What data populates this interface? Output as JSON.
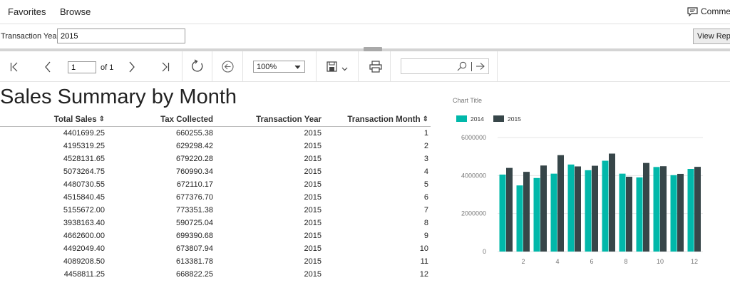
{
  "nav": {
    "favorites": "Favorites",
    "browse": "Browse",
    "comments": "Comments"
  },
  "params": {
    "label": "Transaction Year:",
    "value": "2015",
    "view_report": "View Report"
  },
  "toolbar": {
    "page": "1",
    "of": "of 1",
    "zoom": "100%"
  },
  "report": {
    "title": "Sales Summary by Month",
    "columns": [
      "Total Sales",
      "Tax Collected",
      "Transaction Year",
      "Transaction Month"
    ],
    "rows": [
      [
        "4401699.25",
        "660255.38",
        "2015",
        "1"
      ],
      [
        "4195319.25",
        "629298.42",
        "2015",
        "2"
      ],
      [
        "4528131.65",
        "679220.28",
        "2015",
        "3"
      ],
      [
        "5073264.75",
        "760990.34",
        "2015",
        "4"
      ],
      [
        "4480730.55",
        "672110.17",
        "2015",
        "5"
      ],
      [
        "4515840.45",
        "677376.70",
        "2015",
        "6"
      ],
      [
        "5155672.00",
        "773351.38",
        "2015",
        "7"
      ],
      [
        "3938163.40",
        "590725.04",
        "2015",
        "8"
      ],
      [
        "4662600.00",
        "699390.68",
        "2015",
        "9"
      ],
      [
        "4492049.40",
        "673807.94",
        "2015",
        "10"
      ],
      [
        "4089208.50",
        "613381.78",
        "2015",
        "11"
      ],
      [
        "4458811.25",
        "668822.25",
        "2015",
        "12"
      ]
    ]
  },
  "chart_data": {
    "type": "bar",
    "title": "Chart Title",
    "categories": [
      1,
      2,
      3,
      4,
      5,
      6,
      7,
      8,
      9,
      10,
      11,
      12
    ],
    "xticks": [
      2,
      4,
      6,
      8,
      10,
      12
    ],
    "yticks": [
      0,
      2000000,
      4000000,
      6000000
    ],
    "ylim": [
      0,
      6000000
    ],
    "legend_position": "top-left",
    "series": [
      {
        "name": "2014",
        "color": "#01b8aa",
        "values": [
          4050000,
          3480000,
          3870000,
          4100000,
          4580000,
          4280000,
          4780000,
          4100000,
          3900000,
          4450000,
          4020000,
          4350000
        ]
      },
      {
        "name": "2015",
        "color": "#374649",
        "values": [
          4401699.25,
          4195319.25,
          4528131.65,
          5073264.75,
          4480730.55,
          4515840.45,
          5155672.0,
          3938163.4,
          4662600.0,
          4492049.4,
          4089208.5,
          4458811.25
        ]
      }
    ],
    "grid": true
  },
  "colors": {
    "teal": "#01b8aa",
    "dark": "#374649",
    "grid": "#e6e6e6",
    "label": "#777777"
  }
}
